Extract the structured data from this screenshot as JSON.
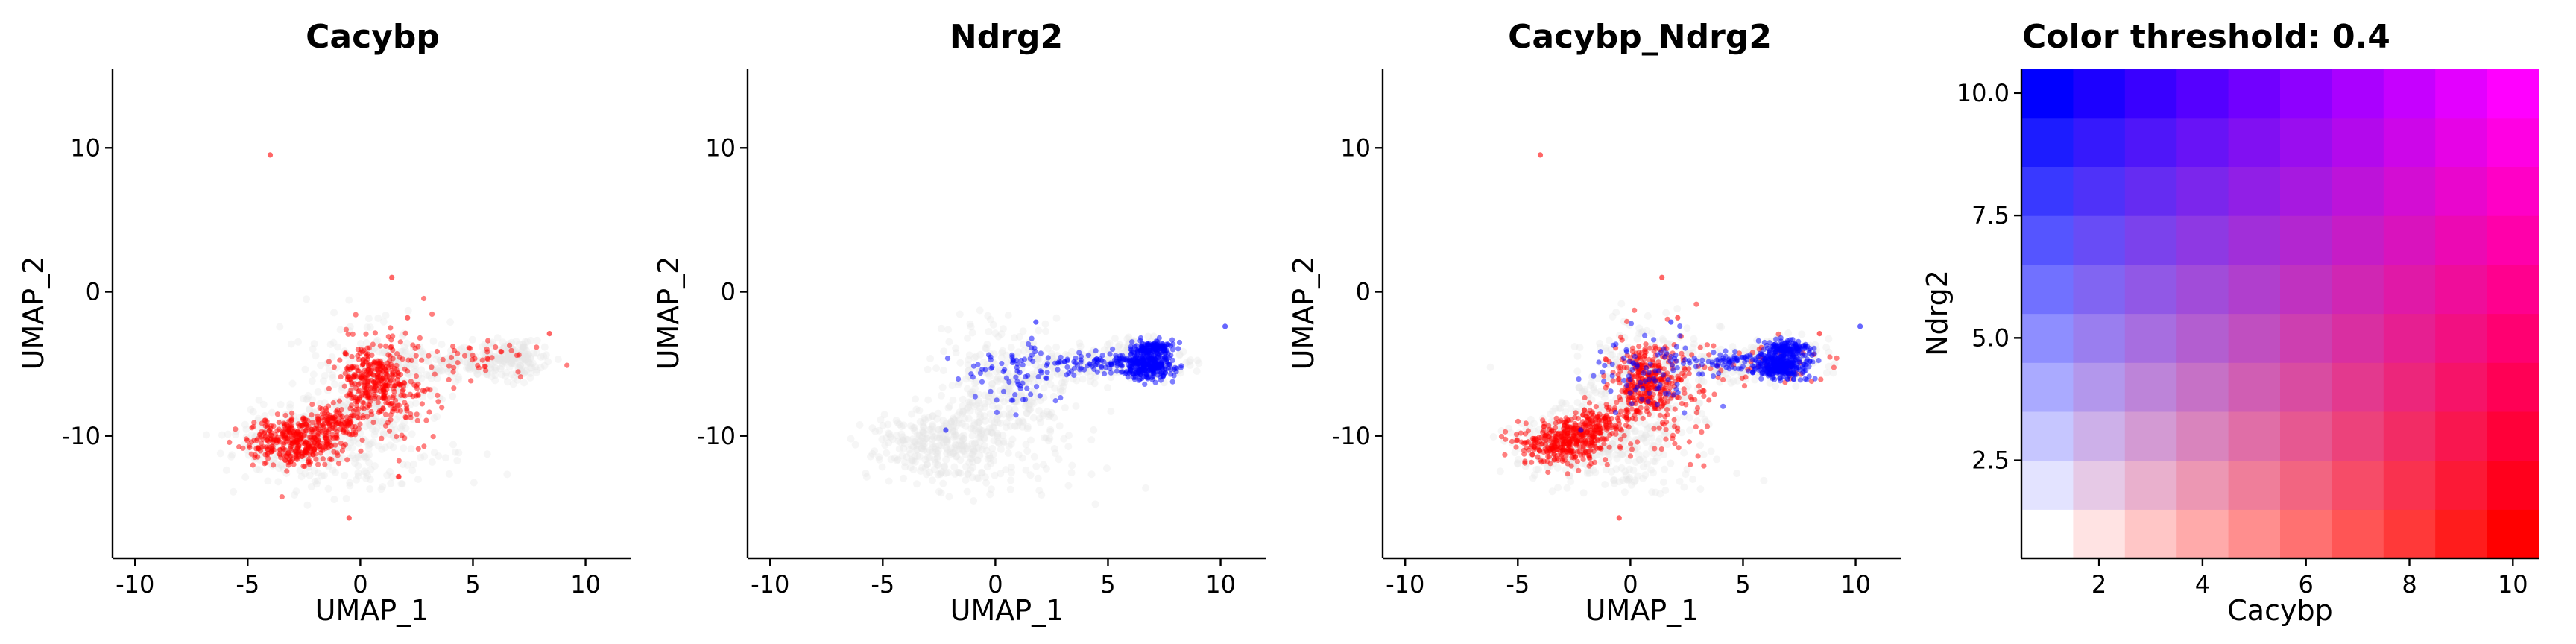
{
  "chart_data": [
    {
      "type": "scatter",
      "title": "Cacybp",
      "xlabel": "UMAP_1",
      "ylabel": "UMAP_2",
      "xlim": [
        -11,
        12
      ],
      "ylim": [
        -18.5,
        15.5
      ],
      "xticks": [
        "-10",
        "-5",
        "0",
        "5",
        "10"
      ],
      "yticks": [
        "10",
        "0",
        "-10"
      ],
      "series": [
        {
          "color": "#ff0000",
          "clusters": [
            {
              "cx": -2.9,
              "cy": -10.4,
              "sx": 1.0,
              "sy": 0.8,
              "n": 360
            },
            {
              "cx": -1.3,
              "cy": -9.1,
              "sx": 0.6,
              "sy": 0.6,
              "n": 110
            },
            {
              "cx": 0.6,
              "cy": -6.2,
              "sx": 0.75,
              "sy": 1.3,
              "n": 300
            },
            {
              "cx": 1.8,
              "cy": -7.0,
              "sx": 1.0,
              "sy": 2.2,
              "n": 90
            },
            {
              "cx": 5.5,
              "cy": -4.8,
              "sx": 1.6,
              "sy": 0.8,
              "n": 45
            }
          ],
          "outliers": [
            {
              "x": -4.0,
              "y": 9.5
            },
            {
              "x": 1.4,
              "y": 1.0
            },
            {
              "x": -0.5,
              "y": -15.7
            },
            {
              "x": 8.4,
              "y": -2.9
            },
            {
              "x": 2.1,
              "y": -1.8
            }
          ]
        }
      ]
    },
    {
      "type": "scatter",
      "title": "Ndrg2",
      "xlabel": "UMAP_1",
      "ylabel": "UMAP_2",
      "xlim": [
        -11,
        12
      ],
      "ylim": [
        -18.5,
        15.5
      ],
      "xticks": [
        "-10",
        "-5",
        "0",
        "5",
        "10"
      ],
      "yticks": [
        "10",
        "0",
        "-10"
      ],
      "series": [
        {
          "color": "#0000ff",
          "clusters": [
            {
              "cx": 6.7,
              "cy": -5.1,
              "sx": 0.55,
              "sy": 0.45,
              "n": 320
            },
            {
              "cx": 7.0,
              "cy": -3.9,
              "sx": 0.45,
              "sy": 0.25,
              "n": 120
            },
            {
              "cx": 4.3,
              "cy": -4.9,
              "sx": 0.9,
              "sy": 0.35,
              "n": 70
            },
            {
              "cx": 0.8,
              "cy": -5.6,
              "sx": 1.2,
              "sy": 1.3,
              "n": 80
            }
          ],
          "outliers": [
            {
              "x": 10.2,
              "y": -2.4
            },
            {
              "x": -2.2,
              "y": -9.6
            },
            {
              "x": 1.8,
              "y": -2.1
            }
          ]
        }
      ]
    },
    {
      "type": "scatter",
      "title": "Cacybp_Ndrg2",
      "xlabel": "UMAP_1",
      "ylabel": "UMAP_2",
      "xlim": [
        -11,
        12
      ],
      "ylim": [
        -18.5,
        15.5
      ],
      "xticks": [
        "-10",
        "-5",
        "0",
        "5",
        "10"
      ],
      "yticks": [
        "10",
        "0",
        "-10"
      ],
      "series": [
        {
          "color": "#ff0000",
          "clusters": [
            {
              "cx": -2.9,
              "cy": -10.4,
              "sx": 1.0,
              "sy": 0.8,
              "n": 360
            },
            {
              "cx": -1.3,
              "cy": -9.1,
              "sx": 0.6,
              "sy": 0.6,
              "n": 110
            },
            {
              "cx": 0.6,
              "cy": -6.2,
              "sx": 0.75,
              "sy": 1.3,
              "n": 300
            },
            {
              "cx": 1.8,
              "cy": -7.0,
              "sx": 1.0,
              "sy": 2.2,
              "n": 90
            },
            {
              "cx": 5.5,
              "cy": -4.8,
              "sx": 1.6,
              "sy": 0.8,
              "n": 45
            }
          ],
          "outliers": [
            {
              "x": -4.0,
              "y": 9.5
            },
            {
              "x": 1.4,
              "y": 1.0
            },
            {
              "x": -0.5,
              "y": -15.7
            },
            {
              "x": 8.4,
              "y": -2.9
            },
            {
              "x": 2.1,
              "y": -1.8
            }
          ]
        },
        {
          "color": "#0000ff",
          "clusters": [
            {
              "cx": 6.7,
              "cy": -5.1,
              "sx": 0.55,
              "sy": 0.45,
              "n": 320
            },
            {
              "cx": 7.0,
              "cy": -3.9,
              "sx": 0.45,
              "sy": 0.25,
              "n": 120
            },
            {
              "cx": 4.3,
              "cy": -4.9,
              "sx": 0.9,
              "sy": 0.35,
              "n": 70
            },
            {
              "cx": 0.8,
              "cy": -5.6,
              "sx": 1.2,
              "sy": 1.3,
              "n": 80
            }
          ],
          "outliers": [
            {
              "x": 10.2,
              "y": -2.4
            },
            {
              "x": -2.2,
              "y": -9.6
            },
            {
              "x": 1.8,
              "y": -2.1
            }
          ]
        }
      ]
    },
    {
      "type": "heatmap",
      "title": "Color threshold: 0.4",
      "xlabel": "Cacybp",
      "ylabel": "Ndrg2",
      "x_range": [
        1,
        10
      ],
      "y_range": [
        1,
        10
      ],
      "xticks": [
        "2",
        "4",
        "6",
        "8",
        "10"
      ],
      "yticks": [
        "2.5",
        "5.0",
        "7.5",
        "10.0"
      ],
      "low_color": "#ffffff",
      "x_color": "#ff0000",
      "y_color": "#0000ff",
      "both_color": "#ff00ff"
    }
  ]
}
